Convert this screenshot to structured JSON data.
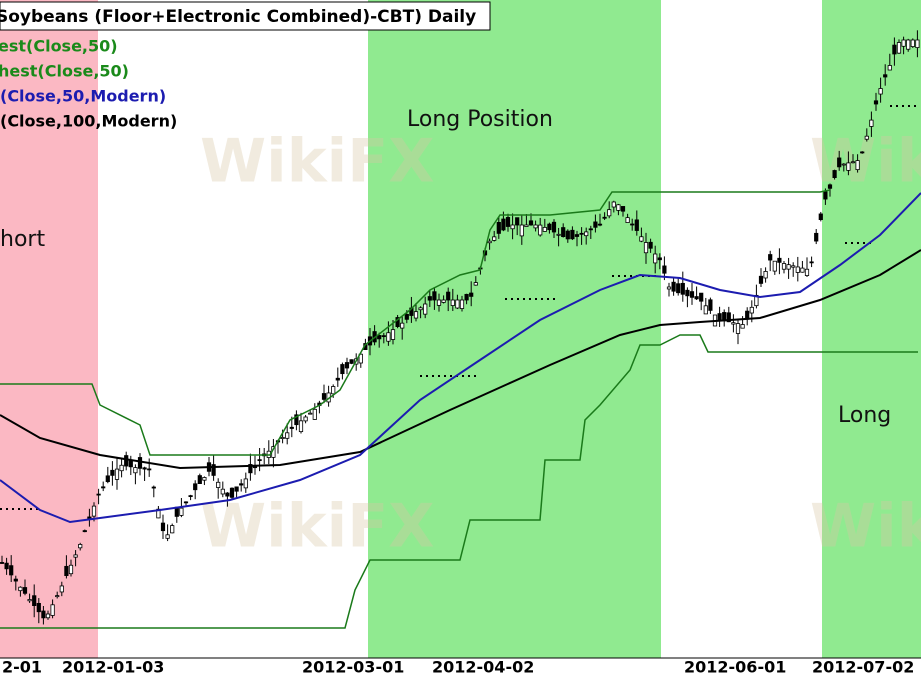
{
  "header": {
    "title": "Soybeans (Floor+Electronic Combined)-CBT) Daily"
  },
  "legend": [
    {
      "text": "est(Close,50)",
      "color": "#1a8a1a"
    },
    {
      "text": "hest(Close,50)",
      "color": "#1a8a1a"
    },
    {
      "text": "(Close,50,Modern)",
      "color": "#1c1cb0"
    },
    {
      "text": "(Close,100,Modern)",
      "color": "#000000"
    }
  ],
  "regions": [
    "hort",
    "Long Position",
    "Long"
  ],
  "x_axis": [
    "2-01",
    "2012-01-03",
    "2012-03-01",
    "2012-04-02",
    "2012-06-01",
    "2012-07-02"
  ],
  "watermarks": [
    "WikiFX",
    "WikiFX",
    "WikiFX",
    "WikiFX"
  ]
}
